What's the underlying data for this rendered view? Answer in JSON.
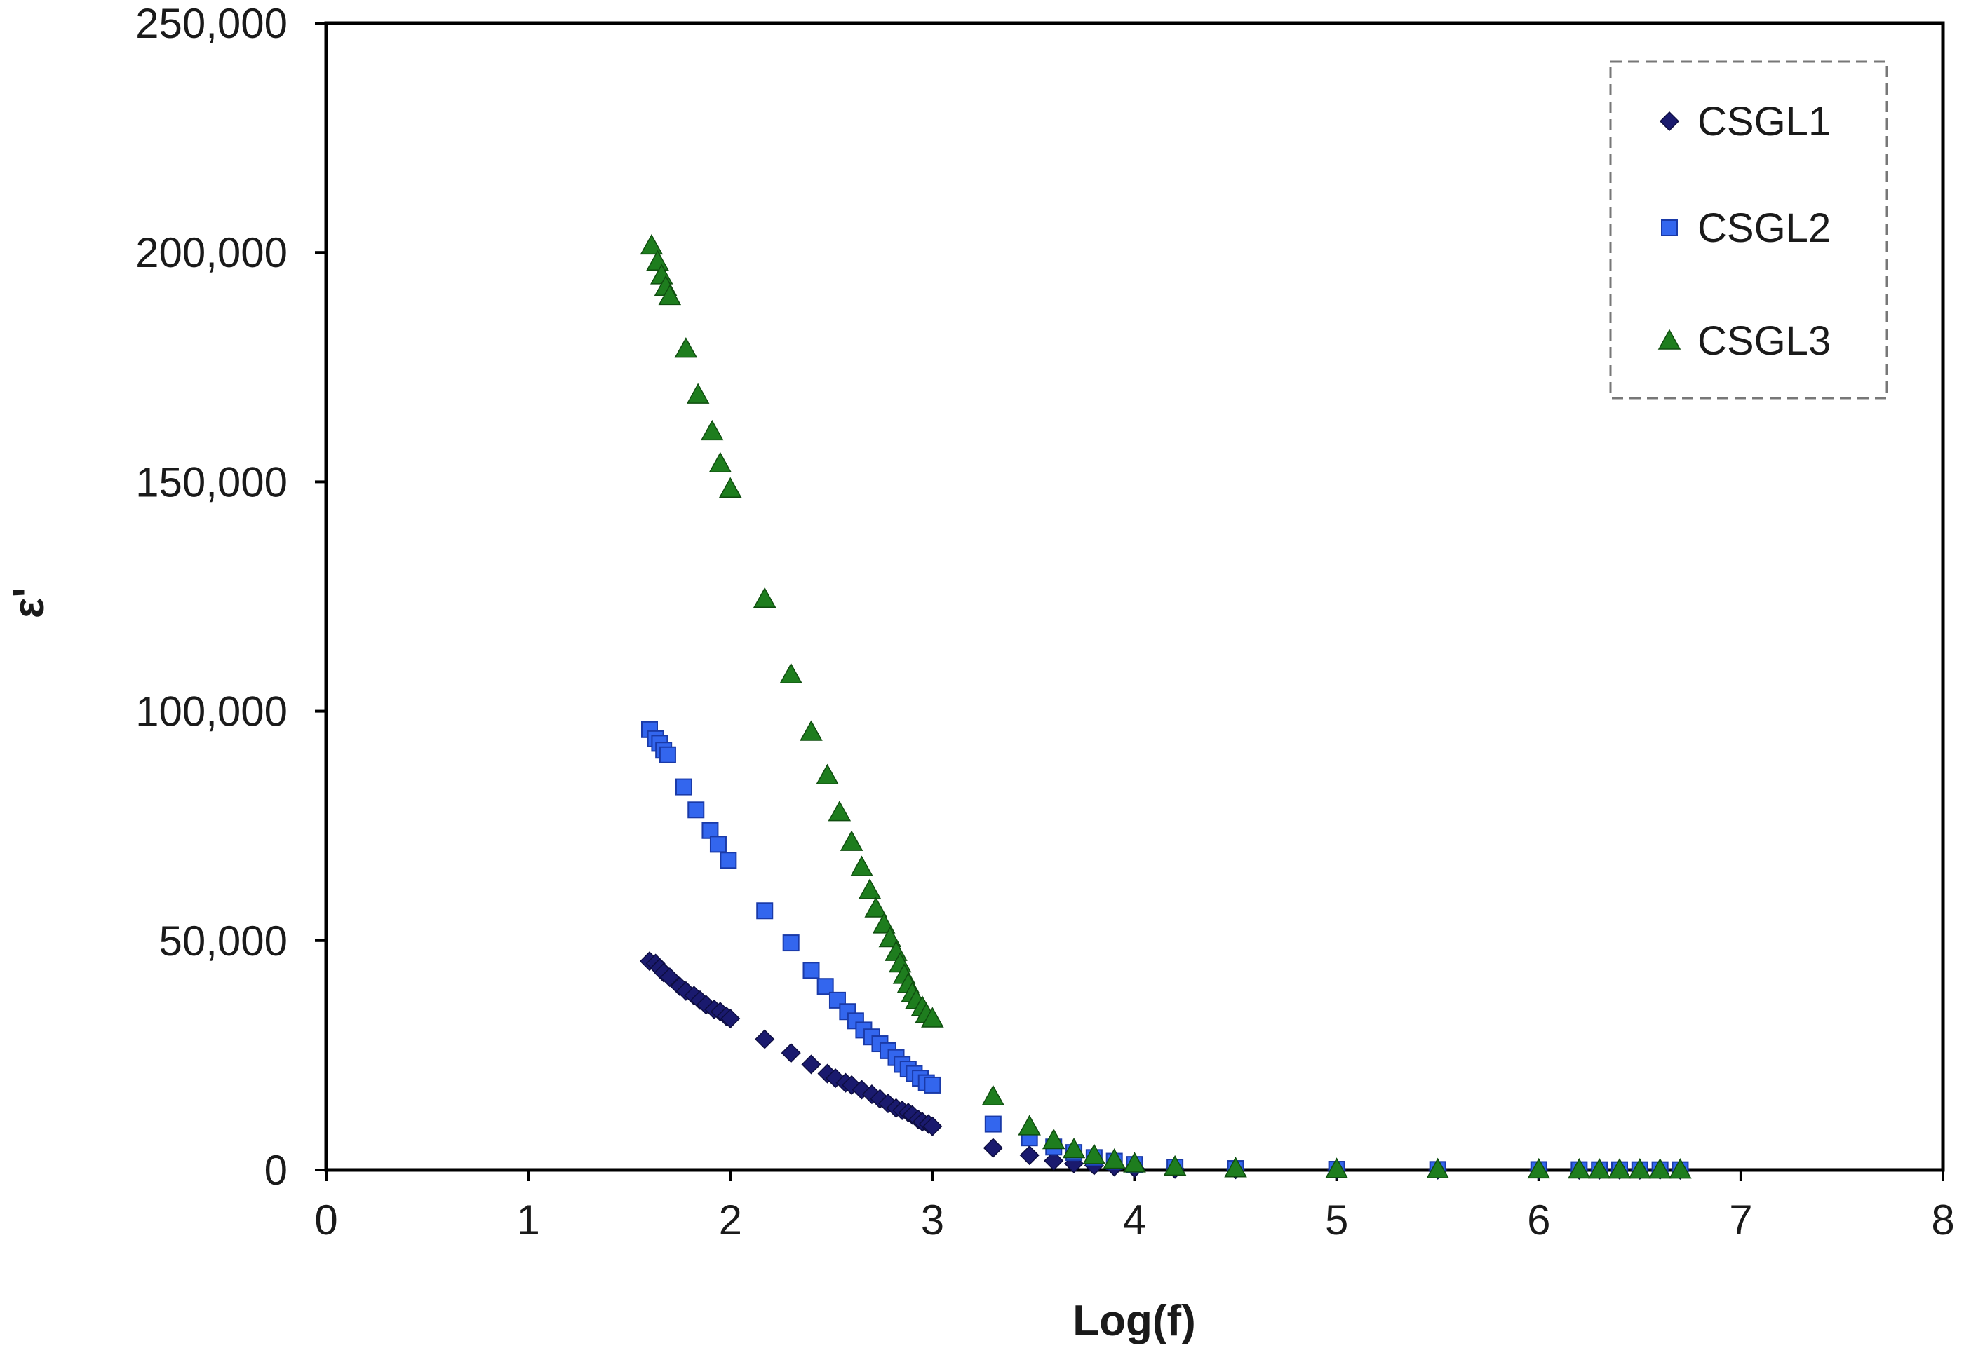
{
  "chart_data": {
    "type": "scatter",
    "title": "",
    "xlabel": "Log(f)",
    "ylabel": "ε'",
    "xlim": [
      0,
      8
    ],
    "ylim": [
      0,
      250000
    ],
    "x_ticks": [
      0,
      1,
      2,
      3,
      4,
      5,
      6,
      7,
      8
    ],
    "y_ticks": [
      0,
      50000,
      100000,
      150000,
      200000,
      250000
    ],
    "x_tick_labels": [
      "0",
      "1",
      "2",
      "3",
      "4",
      "5",
      "6",
      "7",
      "8"
    ],
    "y_tick_labels": [
      "0",
      "50,000",
      "100,000",
      "150,000",
      "200,000",
      "250,000"
    ],
    "grid": false,
    "legend_position": "top-right",
    "series": [
      {
        "name": "CSGL1",
        "marker": "diamond",
        "color": "#1a1a6e",
        "points": [
          [
            1.6,
            45500
          ],
          [
            1.63,
            45000
          ],
          [
            1.65,
            44000
          ],
          [
            1.67,
            43000
          ],
          [
            1.7,
            42000
          ],
          [
            1.75,
            40000
          ],
          [
            1.78,
            39000
          ],
          [
            1.82,
            38000
          ],
          [
            1.85,
            37000
          ],
          [
            1.88,
            36000
          ],
          [
            1.92,
            35000
          ],
          [
            1.95,
            34500
          ],
          [
            1.98,
            33500
          ],
          [
            2.0,
            33000
          ],
          [
            2.17,
            28500
          ],
          [
            2.3,
            25500
          ],
          [
            2.4,
            23000
          ],
          [
            2.48,
            21000
          ],
          [
            2.52,
            20000
          ],
          [
            2.57,
            19000
          ],
          [
            2.6,
            18500
          ],
          [
            2.65,
            17500
          ],
          [
            2.7,
            16500
          ],
          [
            2.74,
            15500
          ],
          [
            2.78,
            14500
          ],
          [
            2.82,
            13500
          ],
          [
            2.85,
            13000
          ],
          [
            2.88,
            12500
          ],
          [
            2.9,
            12000
          ],
          [
            2.93,
            11000
          ],
          [
            2.95,
            10500
          ],
          [
            2.98,
            10000
          ],
          [
            3.0,
            9500
          ],
          [
            3.3,
            4800
          ],
          [
            3.48,
            3200
          ],
          [
            3.6,
            2000
          ],
          [
            3.7,
            1400
          ],
          [
            3.8,
            1000
          ],
          [
            3.9,
            700
          ],
          [
            4.0,
            400
          ],
          [
            4.2,
            200
          ],
          [
            4.5,
            100
          ],
          [
            5.0,
            50
          ],
          [
            5.5,
            30
          ],
          [
            6.0,
            20
          ],
          [
            6.2,
            15
          ],
          [
            6.3,
            10
          ],
          [
            6.4,
            10
          ],
          [
            6.5,
            10
          ],
          [
            6.6,
            10
          ],
          [
            6.7,
            10
          ]
        ]
      },
      {
        "name": "CSGL2",
        "marker": "square",
        "color": "#3366ee",
        "points": [
          [
            1.6,
            96000
          ],
          [
            1.63,
            94000
          ],
          [
            1.65,
            93000
          ],
          [
            1.67,
            91500
          ],
          [
            1.69,
            90500
          ],
          [
            1.77,
            83500
          ],
          [
            1.83,
            78500
          ],
          [
            1.9,
            74000
          ],
          [
            1.94,
            71000
          ],
          [
            1.99,
            67500
          ],
          [
            2.17,
            56500
          ],
          [
            2.3,
            49500
          ],
          [
            2.4,
            43500
          ],
          [
            2.47,
            40000
          ],
          [
            2.53,
            37000
          ],
          [
            2.58,
            34500
          ],
          [
            2.62,
            32500
          ],
          [
            2.66,
            30500
          ],
          [
            2.7,
            29000
          ],
          [
            2.74,
            27500
          ],
          [
            2.78,
            26000
          ],
          [
            2.82,
            24500
          ],
          [
            2.85,
            23000
          ],
          [
            2.88,
            22000
          ],
          [
            2.91,
            21000
          ],
          [
            2.94,
            20000
          ],
          [
            2.97,
            19000
          ],
          [
            3.0,
            18500
          ],
          [
            3.3,
            10000
          ],
          [
            3.48,
            7000
          ],
          [
            3.6,
            5000
          ],
          [
            3.7,
            3800
          ],
          [
            3.8,
            2700
          ],
          [
            3.9,
            1900
          ],
          [
            4.0,
            1200
          ],
          [
            4.2,
            600
          ],
          [
            4.5,
            300
          ],
          [
            5.0,
            150
          ],
          [
            5.5,
            100
          ],
          [
            6.0,
            80
          ],
          [
            6.2,
            60
          ],
          [
            6.3,
            50
          ],
          [
            6.4,
            50
          ],
          [
            6.5,
            50
          ],
          [
            6.6,
            50
          ],
          [
            6.7,
            50
          ]
        ]
      },
      {
        "name": "CSGL3",
        "marker": "triangle",
        "color": "#1e7d1e",
        "points": [
          [
            1.61,
            201500
          ],
          [
            1.64,
            198000
          ],
          [
            1.66,
            195000
          ],
          [
            1.68,
            192500
          ],
          [
            1.7,
            190500
          ],
          [
            1.78,
            179000
          ],
          [
            1.84,
            169000
          ],
          [
            1.91,
            161000
          ],
          [
            1.95,
            154000
          ],
          [
            2.0,
            148500
          ],
          [
            2.17,
            124500
          ],
          [
            2.3,
            108000
          ],
          [
            2.4,
            95500
          ],
          [
            2.48,
            86000
          ],
          [
            2.54,
            78000
          ],
          [
            2.6,
            71500
          ],
          [
            2.65,
            66000
          ],
          [
            2.69,
            61000
          ],
          [
            2.72,
            57000
          ],
          [
            2.76,
            53500
          ],
          [
            2.79,
            50500
          ],
          [
            2.82,
            47500
          ],
          [
            2.84,
            45000
          ],
          [
            2.86,
            42500
          ],
          [
            2.88,
            40500
          ],
          [
            2.9,
            38500
          ],
          [
            2.92,
            37000
          ],
          [
            2.95,
            35500
          ],
          [
            2.97,
            34000
          ],
          [
            3.0,
            33000
          ],
          [
            3.3,
            16000
          ],
          [
            3.48,
            9500
          ],
          [
            3.6,
            6500
          ],
          [
            3.7,
            4500
          ],
          [
            3.8,
            3200
          ],
          [
            3.9,
            2200
          ],
          [
            4.0,
            1400
          ],
          [
            4.2,
            700
          ],
          [
            4.5,
            350
          ],
          [
            5.0,
            180
          ],
          [
            5.5,
            120
          ],
          [
            6.0,
            90
          ],
          [
            6.2,
            70
          ],
          [
            6.3,
            60
          ],
          [
            6.4,
            60
          ],
          [
            6.5,
            60
          ],
          [
            6.6,
            60
          ],
          [
            6.7,
            60
          ]
        ]
      }
    ]
  }
}
